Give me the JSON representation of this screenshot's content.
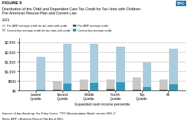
{
  "chart_data": {
    "type": "bar",
    "title": "Distribution of the Child and Dependent Care Tax Credit for Tax Units with Children:\nPre-American Rescue Plan and Current Law",
    "subtitle": "2021",
    "x_label": "Expanded cash income percentile",
    "categories": [
      "Lowest Quintile",
      "Second Quintile",
      "Middle Quintile",
      "Fourth Quintile",
      "Top Quintile",
      "All"
    ],
    "series": [
      {
        "name": "Pre-ARP average credit for tax units with credit",
        "color": "#c8c8c8",
        "values": [
          20,
          480,
          580,
          580,
          670,
          570
        ]
      },
      {
        "name": "Current law average credit for tax units with credit",
        "color": "#aaccdd",
        "values": [
          1730,
          2420,
          2420,
          2280,
          1460,
          2180
        ]
      },
      {
        "name": "Pre-ARP average credit",
        "color": "#555555",
        "values": [
          5,
          25,
          55,
          75,
          45,
          45
        ]
      },
      {
        "name": "Current law average credit",
        "color": "#3399bb",
        "values": [
          35,
          360,
          410,
          430,
          185,
          330
        ]
      }
    ],
    "stacked": false,
    "ylim": [
      0,
      2700
    ],
    "yticks": [
      {
        "value": 0,
        "label": "$0"
      },
      {
        "value": 500,
        "label": "$500"
      },
      {
        "value": 1000,
        "label": "$1,000"
      },
      {
        "value": 1500,
        "label": "$1,500"
      },
      {
        "value": 2000,
        "label": "$2,000"
      },
      {
        "value": 2500,
        "label": "$2,500"
      }
    ],
    "grid": true,
    "legend": "upper left",
    "annotations": [
      "FIGURE 5",
      "TPC",
      "Sources: Urban-Brookings Tax Policy Center, \"TPC Microsimulation Model, version 0921-1\"",
      "Notes: ARP = American Rescue Plan Act of 2021."
    ]
  }
}
